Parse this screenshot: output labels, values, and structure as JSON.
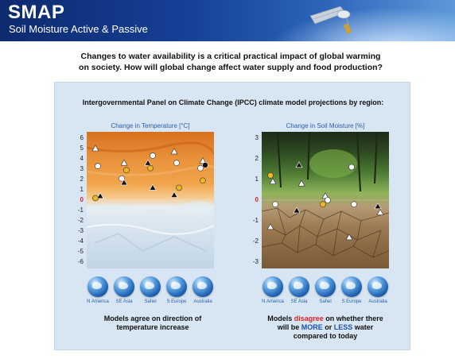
{
  "header": {
    "title": "SMAP",
    "subtitle": "Soil Moisture Active & Passive"
  },
  "intro": {
    "line1": "Changes to water availability is a critical practical impact of global warming",
    "line2": "on society. How will global change affect water supply and food production?"
  },
  "panel": {
    "heading": "Intergovernmental Panel on Climate Change (IPCC) climate model projections by region:"
  },
  "chart_data": [
    {
      "type": "scatter",
      "title": "Change in Temperature [°C]",
      "ylim": [
        -6,
        6
      ],
      "yticks": [
        "6",
        "5",
        "4",
        "3",
        "2",
        "1",
        "0",
        "-1",
        "-2",
        "-3",
        "-4",
        "-5",
        "-6"
      ],
      "categories": [
        "N America",
        "SE Asia",
        "Sahel",
        "S Europe",
        "Australia"
      ],
      "points": [
        {
          "cat": 0,
          "y": 5.0,
          "shape": "triangle",
          "color": "#ffffff"
        },
        {
          "cat": 0,
          "y": 3.3,
          "shape": "circle",
          "color": "#ffffff"
        },
        {
          "cat": 0,
          "y": 0.4,
          "shape": "triangle",
          "color": "#111111"
        },
        {
          "cat": 0,
          "y": 0.2,
          "shape": "circle",
          "color": "#f0b820"
        },
        {
          "cat": 1,
          "y": 3.6,
          "shape": "triangle",
          "color": "#ffffff"
        },
        {
          "cat": 1,
          "y": 2.9,
          "shape": "circle",
          "color": "#f0b820"
        },
        {
          "cat": 1,
          "y": 2.1,
          "shape": "circle",
          "color": "#ffffff"
        },
        {
          "cat": 1,
          "y": 1.7,
          "shape": "triangle",
          "color": "#111111"
        },
        {
          "cat": 2,
          "y": 4.3,
          "shape": "circle",
          "color": "#ffffff"
        },
        {
          "cat": 2,
          "y": 3.6,
          "shape": "triangle",
          "color": "#111111"
        },
        {
          "cat": 2,
          "y": 3.1,
          "shape": "circle",
          "color": "#f0b820"
        },
        {
          "cat": 2,
          "y": 1.2,
          "shape": "triangle",
          "color": "#111111"
        },
        {
          "cat": 3,
          "y": 4.7,
          "shape": "triangle",
          "color": "#ffffff"
        },
        {
          "cat": 3,
          "y": 3.6,
          "shape": "circle",
          "color": "#ffffff"
        },
        {
          "cat": 3,
          "y": 1.2,
          "shape": "circle",
          "color": "#f0b820"
        },
        {
          "cat": 3,
          "y": 0.5,
          "shape": "triangle",
          "color": "#111111"
        },
        {
          "cat": 4,
          "y": 3.8,
          "shape": "triangle",
          "color": "#ffffff"
        },
        {
          "cat": 4,
          "y": 3.4,
          "shape": "circle",
          "color": "#111111"
        },
        {
          "cat": 4,
          "y": 3.1,
          "shape": "circle",
          "color": "#ffffff"
        },
        {
          "cat": 4,
          "y": 1.9,
          "shape": "circle",
          "color": "#f0b820"
        }
      ]
    },
    {
      "type": "scatter",
      "title": "Change in Soil Moisture [%]",
      "ylim": [
        -3,
        3
      ],
      "yticks": [
        "3",
        "2",
        "1",
        "0",
        "-1",
        "-2",
        "-3"
      ],
      "categories": [
        "N America",
        "SE Asia",
        "Sahel",
        "S Europe",
        "Australia"
      ],
      "points": [
        {
          "cat": 0,
          "y": 1.2,
          "shape": "circle",
          "color": "#f0b820"
        },
        {
          "cat": 0,
          "y": 0.9,
          "shape": "triangle",
          "color": "#ffffff"
        },
        {
          "cat": 0,
          "y": -0.2,
          "shape": "circle",
          "color": "#ffffff"
        },
        {
          "cat": 0,
          "y": -1.3,
          "shape": "triangle",
          "color": "#ffffff"
        },
        {
          "cat": 1,
          "y": 1.7,
          "shape": "triangle",
          "color": "#111111"
        },
        {
          "cat": 1,
          "y": 0.8,
          "shape": "triangle",
          "color": "#ffffff"
        },
        {
          "cat": 1,
          "y": -0.5,
          "shape": "triangle",
          "color": "#111111"
        },
        {
          "cat": 2,
          "y": 0.2,
          "shape": "triangle",
          "color": "#ffffff"
        },
        {
          "cat": 2,
          "y": 0.0,
          "shape": "circle",
          "color": "#ffffff"
        },
        {
          "cat": 2,
          "y": -0.2,
          "shape": "circle",
          "color": "#f0b820"
        },
        {
          "cat": 3,
          "y": 1.6,
          "shape": "circle",
          "color": "#ffffff"
        },
        {
          "cat": 3,
          "y": -0.2,
          "shape": "circle",
          "color": "#ffffff"
        },
        {
          "cat": 3,
          "y": -1.8,
          "shape": "triangle",
          "color": "#ffffff"
        },
        {
          "cat": 4,
          "y": -0.3,
          "shape": "triangle",
          "color": "#111111"
        },
        {
          "cat": 4,
          "y": -0.6,
          "shape": "triangle",
          "color": "#ffffff"
        }
      ]
    }
  ],
  "regions": [
    "N America",
    "SE Asia",
    "Sahel",
    "S Europe",
    "Australia"
  ],
  "notes": {
    "left_line1": "Models agree on direction of",
    "left_line2": "temperature increase",
    "right_pre": "Models ",
    "right_disagree": "disagree",
    "right_post": " on whether there",
    "right_line2_pre": "will be ",
    "right_more": "MORE",
    "right_mid": " or ",
    "right_less": "LESS",
    "right_line2_post": " water",
    "right_line3": "compared to today"
  },
  "colors": {
    "accent_blue": "#2a5db0",
    "zero_red": "#e02020",
    "panel_bg": "#d8e6f3"
  }
}
